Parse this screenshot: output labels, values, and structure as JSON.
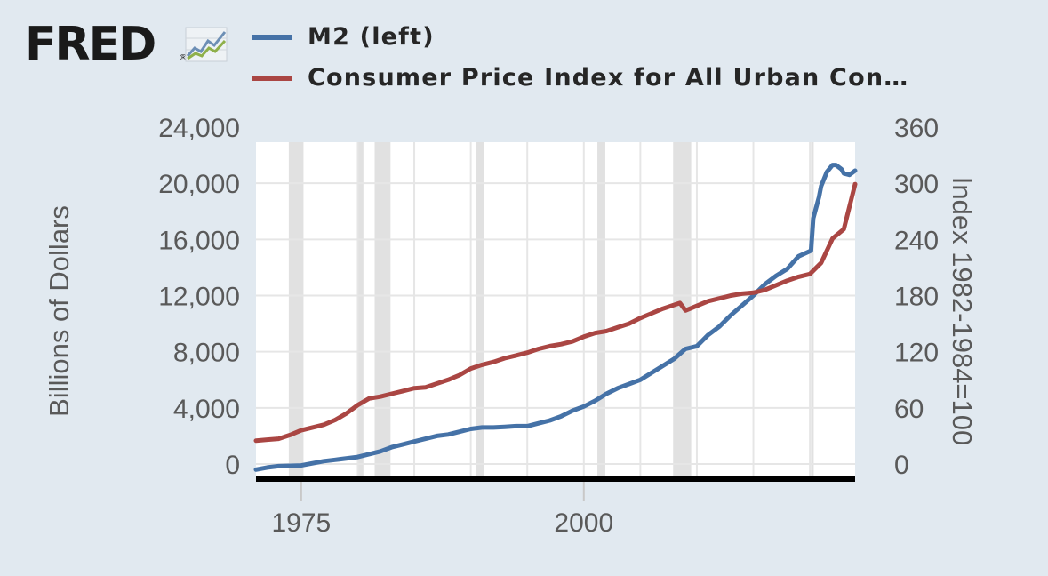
{
  "logo": {
    "text": "FRED",
    "reg": "®"
  },
  "colors": {
    "background": "#e1e9f0",
    "plot_bg": "#ffffff",
    "recession": "#e1e1e1",
    "m2": "#4572a7",
    "cpi": "#aa4643"
  },
  "legend": [
    {
      "label": "M2 (left)",
      "color": "#4572a7"
    },
    {
      "label": "Consumer Price Index for All Urban Con…",
      "color": "#aa4643"
    }
  ],
  "chart_data": {
    "type": "line",
    "title": "",
    "xlabel": "",
    "ylabel_left": "Billions of Dollars",
    "ylabel_right": "Index 1982-1984=100",
    "xlim": [
      1971,
      2024
    ],
    "ylim_left": [
      0,
      24000
    ],
    "ylim_right": [
      0,
      360
    ],
    "x_ticks": [
      1975,
      2000
    ],
    "y_ticks_left": [
      "0",
      "4,000",
      "8,000",
      "12,000",
      "16,000",
      "20,000",
      "24,000"
    ],
    "y_ticks_right": [
      "0",
      "60",
      "120",
      "180",
      "240",
      "300",
      "360"
    ],
    "grid": true,
    "legend_position": "top",
    "recessions": [
      [
        1973.9,
        1975.2
      ],
      [
        1980.0,
        1980.5
      ],
      [
        1981.5,
        1982.9
      ],
      [
        1990.5,
        1991.2
      ],
      [
        2001.2,
        2001.9
      ],
      [
        2007.9,
        2009.5
      ],
      [
        2020.1,
        2020.3
      ]
    ],
    "series": [
      {
        "name": "M2 (left)",
        "axis": "left",
        "x": [
          1971,
          1972,
          1973,
          1975,
          1976,
          1977,
          1978,
          1980,
          1982,
          1983,
          1984,
          1985,
          1986,
          1987,
          1988,
          1989,
          1990,
          1991,
          1992,
          1993,
          1994,
          1995,
          1996,
          1997,
          1998,
          1999,
          2000,
          2001,
          2002,
          2003,
          2004,
          2005,
          2006,
          2007,
          2008,
          2008.7,
          2009,
          2010,
          2011,
          2012,
          2013,
          2014,
          2015,
          2016,
          2017,
          2018,
          2019,
          2020.1,
          2020.3,
          2020.8,
          2021,
          2021.5,
          2022,
          2022.3,
          2022.8,
          2023,
          2023.5,
          2024
        ],
        "y": [
          -400,
          -250,
          -150,
          -100,
          50,
          200,
          300,
          500,
          900,
          1200,
          1400,
          1600,
          1800,
          2000,
          2100,
          2300,
          2500,
          2600,
          2600,
          2650,
          2700,
          2700,
          2900,
          3100,
          3400,
          3800,
          4100,
          4500,
          5000,
          5400,
          5700,
          6000,
          6500,
          7000,
          7500,
          8000,
          8200,
          8400,
          9200,
          9800,
          10600,
          11300,
          12000,
          12800,
          13400,
          13900,
          14800,
          15200,
          17500,
          19000,
          19800,
          20800,
          21300,
          21300,
          21000,
          20700,
          20600,
          20900
        ]
      },
      {
        "name": "Consumer Price Index for All Urban Con…",
        "axis": "right",
        "x": [
          1971,
          1972,
          1973,
          1974,
          1975,
          1976,
          1977,
          1978,
          1979,
          1980,
          1981,
          1982,
          1983,
          1984,
          1985,
          1986,
          1987,
          1988,
          1989,
          1990,
          1991,
          1992,
          1993,
          1994,
          1995,
          1996,
          1997,
          1998,
          1999,
          2000,
          2001,
          2002,
          2003,
          2004,
          2005,
          2006,
          2007,
          2008.5,
          2009,
          2010,
          2011,
          2012,
          2013,
          2014,
          2015,
          2016,
          2017,
          2018,
          2019,
          2020,
          2021,
          2022,
          2023,
          2024
        ],
        "y": [
          25,
          26,
          27,
          31,
          36,
          39,
          42,
          47,
          54,
          63,
          70,
          72,
          75,
          78,
          81,
          82,
          86,
          90,
          95,
          102,
          106,
          109,
          113,
          116,
          119,
          123,
          126,
          128,
          131,
          136,
          140,
          142,
          146,
          150,
          156,
          161,
          166,
          172,
          164,
          169,
          174,
          177,
          180,
          182,
          183,
          186,
          191,
          196,
          200,
          203,
          215,
          241,
          251,
          299
        ]
      }
    ]
  }
}
